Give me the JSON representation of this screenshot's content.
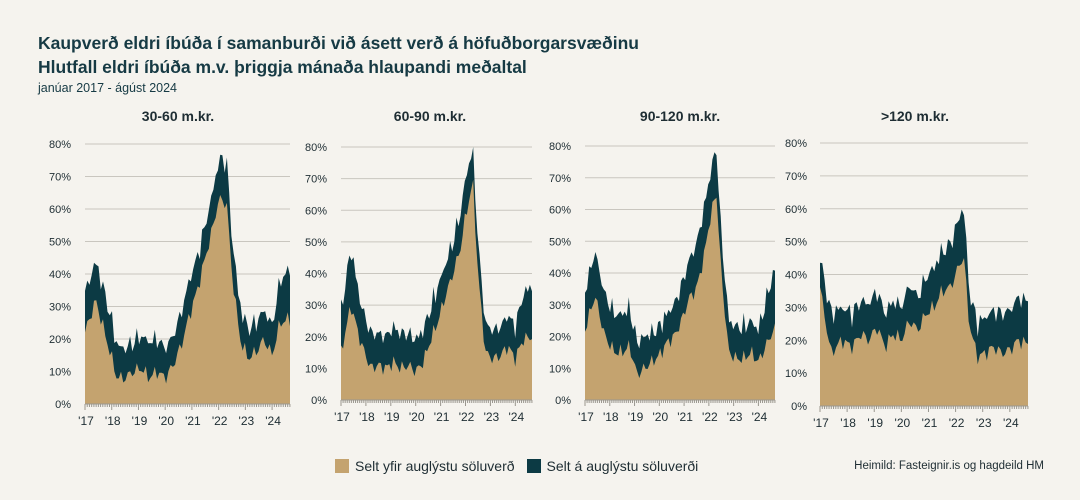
{
  "header": {
    "title": "Kaupverð eldri íbúða í samanburði við ásett verð á höfuðborgarsvæðinu",
    "subtitle": "Hlutfall eldri íbúða m.v. þriggja mánaða hlaupandi meðaltal",
    "period": "janúar 2017 - ágúst 2024"
  },
  "legend": {
    "above_label": "Selt yfir auglýstu söluverð",
    "at_label": "Selt á auglýstu söluverði"
  },
  "source": "Heimild: Fasteignir.is og hagdeild HM",
  "colors": {
    "above": "#c4a36f",
    "at": "#0c3a44",
    "grid": "#c9c6bf",
    "axis": "#9a978f",
    "text": "#1e2d33"
  },
  "chart_data": [
    {
      "type": "area",
      "stacked": true,
      "title": "30-60 m.kr.",
      "x_ticks": [
        "'17",
        "'18",
        "'19",
        "'20",
        "'21",
        "'22",
        "'23",
        "'24"
      ],
      "y_ticks": [
        "0%",
        "10%",
        "20%",
        "30%",
        "40%",
        "50%",
        "60%",
        "70%",
        "80%"
      ],
      "ylim": [
        0,
        80
      ],
      "x_knots": [
        2017.0,
        2017.4,
        2017.9,
        2018.2,
        2018.5,
        2018.8,
        2019.1,
        2019.4,
        2019.7,
        2020.0,
        2020.3,
        2020.6,
        2020.9,
        2021.2,
        2021.5,
        2021.8,
        2022.0,
        2022.3,
        2022.5,
        2022.8,
        2023.1,
        2023.4,
        2023.7,
        2024.0,
        2024.3,
        2024.6
      ],
      "above_knots": [
        22,
        32,
        17,
        8,
        8,
        10,
        11,
        8,
        10,
        8,
        12,
        18,
        27,
        35,
        45,
        55,
        63,
        62,
        40,
        20,
        14,
        16,
        20,
        15,
        25,
        26
      ],
      "at_knots": [
        12,
        12,
        12,
        10,
        9,
        9,
        10,
        11,
        10,
        9,
        9,
        10,
        11,
        10,
        10,
        11,
        12,
        13,
        11,
        10,
        9,
        9,
        9,
        9,
        13,
        15
      ],
      "series": [
        {
          "name": "Selt yfir auglýstu söluverð",
          "peak_value": 63
        },
        {
          "name": "Selt á auglýstu söluverði",
          "peak_total": 76
        }
      ]
    },
    {
      "type": "area",
      "stacked": true,
      "title": "60-90 m.kr.",
      "x_ticks": [
        "'17",
        "'18",
        "'19",
        "'20",
        "'21",
        "'22",
        "'23",
        "'24"
      ],
      "y_ticks": [
        "0%",
        "10%",
        "20%",
        "30%",
        "40%",
        "50%",
        "60%",
        "70%",
        "80%"
      ],
      "ylim": [
        0,
        80
      ],
      "x_knots": [
        2017.0,
        2017.4,
        2017.8,
        2018.2,
        2018.5,
        2018.8,
        2019.1,
        2019.4,
        2019.7,
        2020.0,
        2020.3,
        2020.6,
        2020.9,
        2021.2,
        2021.5,
        2021.8,
        2022.0,
        2022.3,
        2022.5,
        2022.8,
        2023.1,
        2023.4,
        2023.7,
        2024.0,
        2024.3,
        2024.6
      ],
      "above_knots": [
        15,
        30,
        18,
        10,
        11,
        10,
        12,
        10,
        11,
        9,
        12,
        19,
        25,
        33,
        40,
        48,
        58,
        69,
        40,
        15,
        13,
        14,
        17,
        13,
        19,
        20
      ],
      "at_knots": [
        13,
        18,
        12,
        11,
        10,
        10,
        11,
        11,
        10,
        10,
        10,
        10,
        11,
        10,
        10,
        11,
        12,
        11,
        10,
        9,
        9,
        9,
        10,
        10,
        14,
        16
      ],
      "series": [
        {
          "name": "Selt yfir auglýstu söluverð",
          "peak_value": 70
        },
        {
          "name": "Selt á auglýstu söluverði",
          "peak_total": 80
        }
      ]
    },
    {
      "type": "area",
      "stacked": true,
      "title": "90-120 m.kr.",
      "x_ticks": [
        "'17",
        "'18",
        "'19",
        "'20",
        "'21",
        "'22",
        "'23",
        "'24"
      ],
      "y_ticks": [
        "0%",
        "10%",
        "20%",
        "30%",
        "40%",
        "50%",
        "60%",
        "70%",
        "80%"
      ],
      "ylim": [
        0,
        80
      ],
      "x_knots": [
        2017.0,
        2017.4,
        2017.8,
        2018.2,
        2018.5,
        2018.8,
        2019.1,
        2019.4,
        2019.7,
        2020.0,
        2020.3,
        2020.6,
        2020.9,
        2021.2,
        2021.5,
        2021.8,
        2022.0,
        2022.3,
        2022.5,
        2022.8,
        2023.1,
        2023.4,
        2023.7,
        2024.0,
        2024.3,
        2024.6
      ],
      "above_knots": [
        22,
        33,
        20,
        15,
        15,
        17,
        8,
        10,
        12,
        14,
        18,
        20,
        25,
        32,
        35,
        45,
        55,
        66,
        40,
        15,
        13,
        13,
        15,
        12,
        17,
        22
      ],
      "at_knots": [
        12,
        14,
        13,
        12,
        12,
        12,
        10,
        10,
        9,
        9,
        9,
        10,
        11,
        12,
        14,
        15,
        14,
        14,
        12,
        10,
        10,
        10,
        10,
        10,
        14,
        18
      ],
      "series": [
        {
          "name": "Selt yfir auglýstu söluverð",
          "peak_value": 66
        },
        {
          "name": "Selt á auglýstu söluverði",
          "peak_total": 80
        }
      ]
    },
    {
      "type": "area",
      "stacked": true,
      "title": ">120 m.kr.",
      "x_ticks": [
        "'17",
        "'18",
        "'19",
        "'20",
        "'21",
        "'22",
        "'23",
        "'24"
      ],
      "y_ticks": [
        "0%",
        "10%",
        "20%",
        "30%",
        "40%",
        "50%",
        "60%",
        "70%",
        "80%"
      ],
      "ylim": [
        0,
        80
      ],
      "x_knots": [
        2017.0,
        2017.4,
        2017.8,
        2018.2,
        2018.5,
        2018.8,
        2019.1,
        2019.4,
        2019.7,
        2020.0,
        2020.3,
        2020.6,
        2020.9,
        2021.2,
        2021.5,
        2021.8,
        2022.0,
        2022.3,
        2022.5,
        2022.8,
        2023.1,
        2023.4,
        2023.7,
        2024.0,
        2024.3,
        2024.6
      ],
      "above_knots": [
        36,
        16,
        20,
        18,
        22,
        20,
        24,
        18,
        22,
        20,
        26,
        23,
        28,
        30,
        35,
        36,
        40,
        46,
        25,
        15,
        16,
        18,
        16,
        17,
        20,
        19
      ],
      "at_knots": [
        9,
        12,
        10,
        10,
        10,
        11,
        11,
        10,
        10,
        10,
        11,
        10,
        11,
        12,
        12,
        13,
        14,
        15,
        10,
        10,
        11,
        11,
        12,
        12,
        13,
        13
      ],
      "series": [
        {
          "name": "Selt yfir auglýstu söluverð",
          "peak_value": 48
        },
        {
          "name": "Selt á auglýstu söluverði",
          "peak_total": 63
        }
      ]
    }
  ]
}
